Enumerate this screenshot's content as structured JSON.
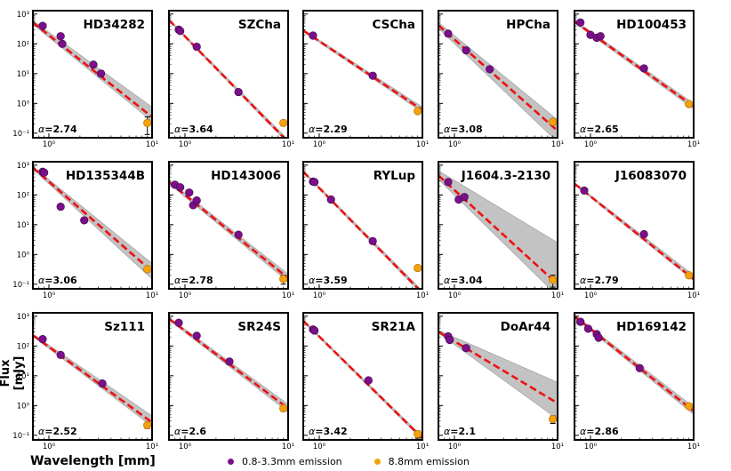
{
  "figure": {
    "ylabel": "Flux [mJy]",
    "xlabel": "Wavelength [mm]",
    "legend": [
      {
        "label": "0.8-3.3mm emission",
        "color": "#7b0f8a"
      },
      {
        "label": "8.8mm emission",
        "color": "#f5a10c"
      }
    ],
    "x_tick_labels": [
      "10⁰",
      "10¹"
    ],
    "y_tick_labels": [
      "10³",
      "10²",
      "10¹",
      "10⁰",
      "10⁻¹"
    ]
  },
  "chart_data": [
    {
      "type": "scatter",
      "title": "HD34282",
      "alpha": "2.74",
      "xscale": "log",
      "yscale": "log",
      "xlim": [
        0.7,
        10
      ],
      "ylim": [
        0.07,
        1300
      ],
      "points_x": [
        0.87,
        1.3,
        1.35,
        2.7,
        3.2
      ],
      "points_y": [
        400,
        180,
        100,
        20,
        10
      ],
      "p8x": 9.0,
      "p8y": 0.22,
      "p8err": 0.13,
      "fit": {
        "x": [
          0.7,
          10
        ],
        "y": [
          520,
          0.35
        ]
      },
      "band": {
        "upper": [
          600,
          0.75
        ],
        "lower": [
          450,
          0.25
        ]
      }
    },
    {
      "type": "scatter",
      "title": "SZCha",
      "alpha": "3.64",
      "xscale": "log",
      "yscale": "log",
      "xlim": [
        0.7,
        10
      ],
      "ylim": [
        0.07,
        1300
      ],
      "points_x": [
        0.87,
        0.9,
        1.3,
        3.3
      ],
      "points_y": [
        300,
        270,
        80,
        2.4
      ],
      "p8x": 9.0,
      "p8y": 0.22,
      "p8err": 0.04,
      "fit": {
        "x": [
          0.7,
          10
        ],
        "y": [
          630,
          0.05
        ]
      },
      "band": {
        "upper": [
          680,
          0.06
        ],
        "lower": [
          590,
          0.045
        ]
      }
    },
    {
      "type": "scatter",
      "title": "CSCha",
      "alpha": "2.29",
      "xscale": "log",
      "yscale": "log",
      "xlim": [
        0.7,
        10
      ],
      "ylim": [
        0.07,
        1300
      ],
      "points_x": [
        0.87,
        3.3
      ],
      "points_y": [
        190,
        8.5
      ],
      "p8x": 9.0,
      "p8y": 0.55,
      "p8err": 0.1,
      "fit": {
        "x": [
          0.7,
          10
        ],
        "y": [
          280,
          0.6
        ]
      },
      "band": {
        "upper": [
          300,
          0.75
        ],
        "lower": [
          260,
          0.5
        ]
      }
    },
    {
      "type": "scatter",
      "title": "HPCha",
      "alpha": "3.08",
      "xscale": "log",
      "yscale": "log",
      "xlim": [
        0.7,
        10
      ],
      "ylim": [
        0.07,
        1300
      ],
      "points_x": [
        0.87,
        1.3,
        2.2
      ],
      "points_y": [
        220,
        60,
        14
      ],
      "p8x": 9.0,
      "p8y": 0.24,
      "p8err": 0.05,
      "fit": {
        "x": [
          0.7,
          10
        ],
        "y": [
          420,
          0.12
        ]
      },
      "band": {
        "upper": [
          520,
          0.28
        ],
        "lower": [
          330,
          0.05
        ]
      }
    },
    {
      "type": "scatter",
      "title": "HD100453",
      "alpha": "2.65",
      "xscale": "log",
      "yscale": "log",
      "xlim": [
        0.7,
        10
      ],
      "ylim": [
        0.07,
        1300
      ],
      "points_x": [
        0.8,
        1.0,
        1.15,
        1.25,
        3.3
      ],
      "points_y": [
        520,
        200,
        160,
        180,
        15
      ],
      "p8x": 9.0,
      "p8y": 0.95,
      "p8err": 0.1,
      "fit": {
        "x": [
          0.7,
          10
        ],
        "y": [
          560,
          0.8
        ]
      },
      "band": {
        "upper": [
          620,
          1.0
        ],
        "lower": [
          500,
          0.65
        ]
      }
    },
    {
      "type": "scatter",
      "title": "HD135344B",
      "alpha": "3.06",
      "xscale": "log",
      "yscale": "log",
      "xlim": [
        0.7,
        10
      ],
      "ylim": [
        0.07,
        1300
      ],
      "points_x": [
        0.87,
        0.9,
        1.3,
        2.2
      ],
      "points_y": [
        600,
        560,
        40,
        14
      ],
      "p8x": 9.0,
      "p8y": 0.32,
      "p8err": 0.06,
      "fit": {
        "x": [
          0.7,
          10
        ],
        "y": [
          820,
          0.27
        ]
      },
      "band": {
        "upper": [
          900,
          0.5
        ],
        "lower": [
          740,
          0.15
        ]
      }
    },
    {
      "type": "scatter",
      "title": "HD143006",
      "alpha": "2.78",
      "xscale": "log",
      "yscale": "log",
      "xlim": [
        0.7,
        10
      ],
      "ylim": [
        0.07,
        1300
      ],
      "points_x": [
        0.8,
        0.9,
        1.1,
        1.2,
        1.3,
        3.3
      ],
      "points_y": [
        220,
        180,
        120,
        45,
        65,
        4.6
      ],
      "p8x": 9.0,
      "p8y": 0.15,
      "p8err": 0.05,
      "fit": {
        "x": [
          0.7,
          10
        ],
        "y": [
          270,
          0.16
        ]
      },
      "band": {
        "upper": [
          300,
          0.22
        ],
        "lower": [
          240,
          0.12
        ]
      }
    },
    {
      "type": "scatter",
      "title": "RYLup",
      "alpha": "3.59",
      "xscale": "log",
      "yscale": "log",
      "xlim": [
        0.7,
        10
      ],
      "ylim": [
        0.07,
        1300
      ],
      "points_x": [
        0.87,
        0.9,
        1.3,
        3.3
      ],
      "points_y": [
        280,
        270,
        70,
        2.8
      ],
      "p8x": 9.0,
      "p8y": 0.35,
      "p8err": 0.06,
      "fit": {
        "x": [
          0.7,
          10
        ],
        "y": [
          600,
          0.05
        ]
      },
      "band": {
        "upper": [
          650,
          0.06
        ],
        "lower": [
          560,
          0.045
        ]
      }
    },
    {
      "type": "scatter",
      "title": "J1604.3-2130",
      "alpha": "3.04",
      "xscale": "log",
      "yscale": "log",
      "xlim": [
        0.7,
        10
      ],
      "ylim": [
        0.07,
        1300
      ],
      "points_x": [
        0.87,
        1.1,
        1.25
      ],
      "points_y": [
        270,
        70,
        85
      ],
      "p8x": 9.0,
      "p8y": 0.14,
      "p8err": 0.06,
      "fit": {
        "x": [
          0.7,
          10
        ],
        "y": [
          450,
          0.1
        ]
      },
      "band": {
        "upper": [
          650,
          2.5
        ],
        "lower": [
          330,
          0.04
        ]
      }
    },
    {
      "type": "scatter",
      "title": "J16083070",
      "alpha": "2.79",
      "xscale": "log",
      "yscale": "log",
      "xlim": [
        0.7,
        10
      ],
      "ylim": [
        0.07,
        1300
      ],
      "points_x": [
        0.87,
        3.3
      ],
      "points_y": [
        140,
        4.8
      ],
      "p8x": 9.0,
      "p8y": 0.2,
      "p8err": 0.03,
      "fit": {
        "x": [
          0.7,
          10
        ],
        "y": [
          240,
          0.15
        ]
      },
      "band": {
        "upper": [
          255,
          0.2
        ],
        "lower": [
          225,
          0.13
        ]
      }
    },
    {
      "type": "scatter",
      "title": "Sz111",
      "alpha": "2.52",
      "xscale": "log",
      "yscale": "log",
      "xlim": [
        0.7,
        10
      ],
      "ylim": [
        0.07,
        1300
      ],
      "points_x": [
        0.87,
        1.3,
        3.3
      ],
      "points_y": [
        170,
        50,
        5.5
      ],
      "p8x": 9.0,
      "p8y": 0.22,
      "p8err": 0.05,
      "fit": {
        "x": [
          0.7,
          10
        ],
        "y": [
          230,
          0.27
        ]
      },
      "band": {
        "upper": [
          250,
          0.45
        ],
        "lower": [
          210,
          0.2
        ]
      }
    },
    {
      "type": "scatter",
      "title": "SR24S",
      "alpha": "2.6",
      "xscale": "log",
      "yscale": "log",
      "xlim": [
        0.7,
        10
      ],
      "ylim": [
        0.07,
        1300
      ],
      "points_x": [
        0.87,
        1.3,
        2.7
      ],
      "points_y": [
        600,
        220,
        30
      ],
      "p8x": 9.0,
      "p8y": 0.8,
      "p8err": 0.15,
      "fit": {
        "x": [
          0.7,
          10
        ],
        "y": [
          820,
          0.8
        ]
      },
      "band": {
        "upper": [
          900,
          1.1
        ],
        "lower": [
          750,
          0.6
        ]
      }
    },
    {
      "type": "scatter",
      "title": "SR21A",
      "alpha": "3.42",
      "xscale": "log",
      "yscale": "log",
      "xlim": [
        0.7,
        10
      ],
      "ylim": [
        0.07,
        1300
      ],
      "points_x": [
        0.87,
        0.9,
        3.0
      ],
      "points_y": [
        360,
        330,
        7
      ],
      "p8x": 9.0,
      "p8y": 0.11,
      "p8err": 0.03,
      "fit": {
        "x": [
          0.7,
          10
        ],
        "y": [
          700,
          0.08
        ]
      },
      "band": {
        "upper": [
          740,
          0.09
        ],
        "lower": [
          660,
          0.07
        ]
      }
    },
    {
      "type": "scatter",
      "title": "DoAr44",
      "alpha": "2.1",
      "xscale": "log",
      "yscale": "log",
      "xlim": [
        0.7,
        10
      ],
      "ylim": [
        0.07,
        1300
      ],
      "points_x": [
        0.87,
        0.9,
        1.3
      ],
      "points_y": [
        210,
        160,
        85
      ],
      "p8x": 9.0,
      "p8y": 0.35,
      "p8err": 0.1,
      "fit": {
        "x": [
          0.7,
          10
        ],
        "y": [
          300,
          1.2
        ]
      },
      "band": {
        "upper": [
          340,
          6
        ],
        "lower": [
          270,
          0.35
        ]
      }
    },
    {
      "type": "scatter",
      "title": "HD169142",
      "alpha": "2.86",
      "xscale": "log",
      "yscale": "log",
      "xlim": [
        0.7,
        10
      ],
      "ylim": [
        0.07,
        1300
      ],
      "points_x": [
        0.8,
        0.95,
        1.15,
        1.2,
        3.0
      ],
      "points_y": [
        650,
        380,
        250,
        190,
        18
      ],
      "p8x": 9.0,
      "p8y": 0.95,
      "p8err": 0.12,
      "fit": {
        "x": [
          0.7,
          10
        ],
        "y": [
          1000,
          0.65
        ]
      },
      "band": {
        "upper": [
          1100,
          0.9
        ],
        "lower": [
          900,
          0.5
        ]
      }
    }
  ]
}
